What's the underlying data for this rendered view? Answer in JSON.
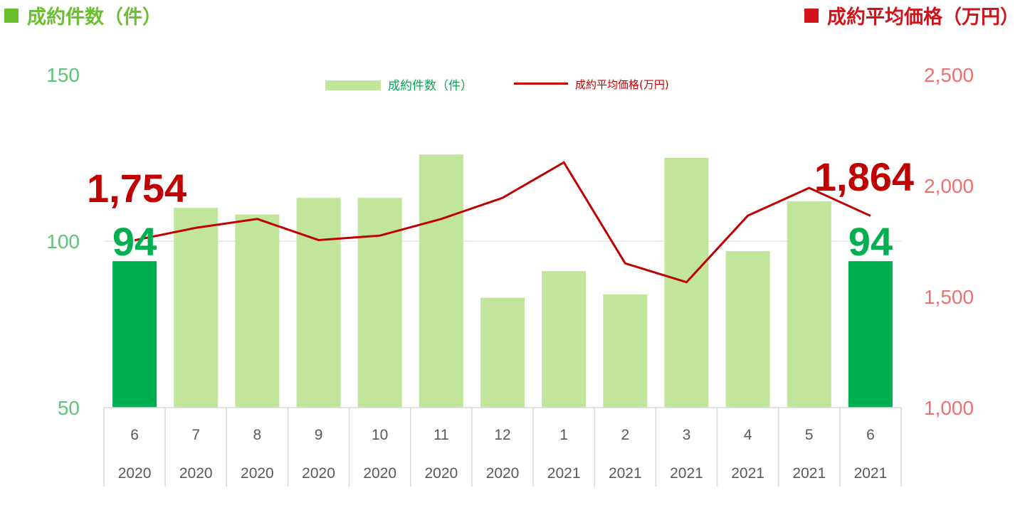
{
  "header": {
    "left_title": "成約件数（件）",
    "right_title": "成約平均価格（万円）"
  },
  "legend": {
    "bar_label": "成約件数（件）",
    "line_label": "成約平均価格(万円)"
  },
  "colors": {
    "bar_regular": "#c2e59c",
    "bar_highlight": "#00b050",
    "line": "#c00000",
    "left_axis_text": "#5fc47a",
    "right_axis_text": "#f07070",
    "header_green": "#6abf2e",
    "header_red": "#d0121b",
    "grid": "#d9d9d9"
  },
  "chart_data": {
    "type": "bar",
    "categories": [
      {
        "month": "6",
        "year": "2020"
      },
      {
        "month": "7",
        "year": "2020"
      },
      {
        "month": "8",
        "year": "2020"
      },
      {
        "month": "9",
        "year": "2020"
      },
      {
        "month": "10",
        "year": "2020"
      },
      {
        "month": "11",
        "year": "2020"
      },
      {
        "month": "12",
        "year": "2020"
      },
      {
        "month": "1",
        "year": "2021"
      },
      {
        "month": "2",
        "year": "2021"
      },
      {
        "month": "3",
        "year": "2021"
      },
      {
        "month": "4",
        "year": "2021"
      },
      {
        "month": "5",
        "year": "2021"
      },
      {
        "month": "6",
        "year": "2021"
      }
    ],
    "series": [
      {
        "name": "成約件数（件）",
        "type": "bar",
        "axis": "left",
        "values": [
          94,
          110,
          108,
          113,
          113,
          126,
          83,
          91,
          84,
          125,
          97,
          112,
          94
        ],
        "highlight": [
          true,
          false,
          false,
          false,
          false,
          false,
          false,
          false,
          false,
          false,
          false,
          false,
          true
        ]
      },
      {
        "name": "成約平均価格(万円)",
        "type": "line",
        "axis": "right",
        "values": [
          1754,
          1810,
          1850,
          1755,
          1775,
          1850,
          1945,
          2105,
          1650,
          1565,
          1865,
          1990,
          1864
        ]
      }
    ],
    "y_left": {
      "min": 50,
      "max": 150,
      "ticks": [
        "50",
        "100",
        "150"
      ]
    },
    "y_right": {
      "min": 1000,
      "max": 2500,
      "ticks": [
        "1,000",
        "1,500",
        "2,000",
        "2,500"
      ]
    },
    "gridlines": [
      100
    ],
    "annotations": {
      "first_count": "94",
      "last_count": "94",
      "first_price": "1,754",
      "last_price": "1,864"
    }
  }
}
